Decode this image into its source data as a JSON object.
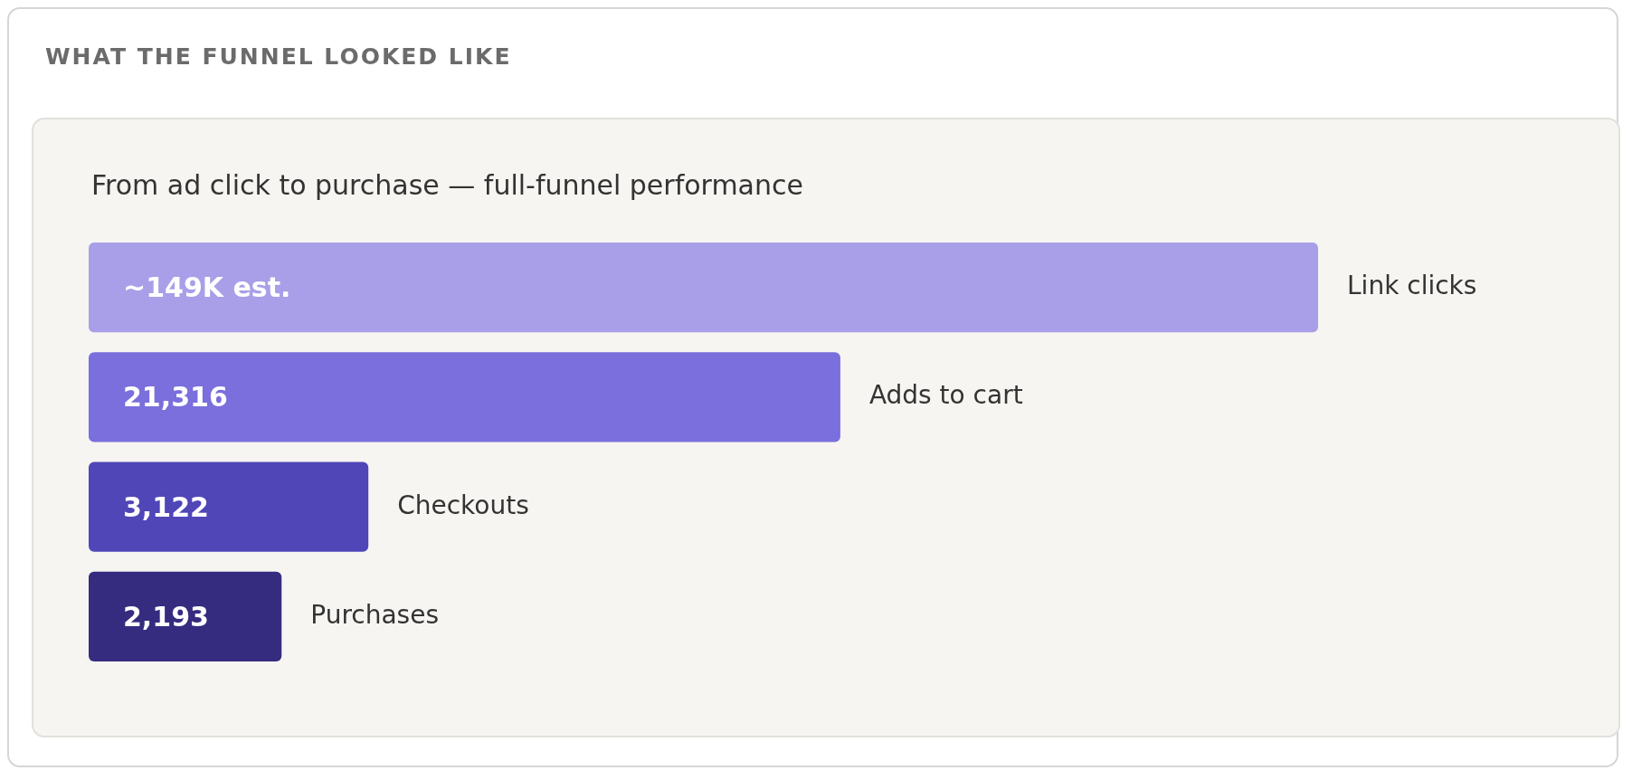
{
  "chart_data": {
    "type": "other",
    "title": "WHAT THE FUNNEL LOOKED LIKE",
    "subtitle": "From ad click to purchase — full-funnel performance",
    "categories": [
      "Link clicks",
      "Adds to cart",
      "Checkouts",
      "Purchases"
    ],
    "values": [
      149000,
      21316,
      3122,
      2193
    ],
    "value_labels": [
      "~149K est.",
      "21,316",
      "3,122",
      "2,193"
    ],
    "colors": [
      "#a89fe8",
      "#7a6fdc",
      "#5046b8",
      "#352c80"
    ]
  }
}
